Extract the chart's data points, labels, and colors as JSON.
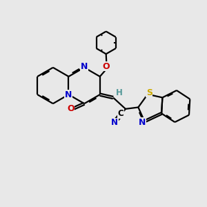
{
  "background_color": "#e8e8e8",
  "bond_color": "#000000",
  "atom_colors": {
    "N": "#0000cc",
    "O": "#cc0000",
    "S": "#ccaa00",
    "C": "#000000",
    "H": "#559999"
  },
  "line_width": 1.6,
  "dbo": 0.06,
  "figsize": [
    3.0,
    3.0
  ],
  "dpi": 100
}
